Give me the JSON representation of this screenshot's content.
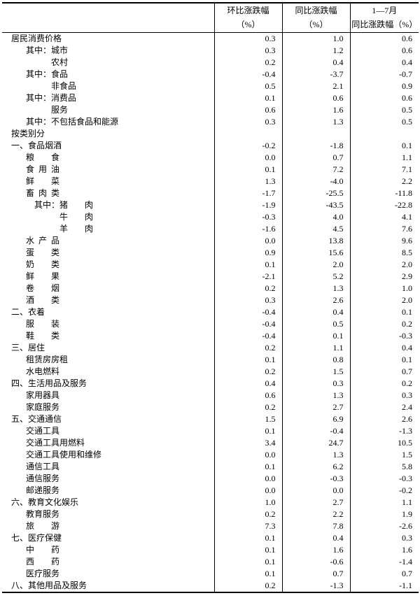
{
  "table": {
    "prefix_label": "其中：",
    "columns": [
      {
        "line1": "环比涨跌幅",
        "line2": "（%）"
      },
      {
        "line1": "同比涨跌幅",
        "line2": "（%）"
      },
      {
        "line1": "1—7月",
        "line2": "同比涨跌幅（%）"
      }
    ],
    "rows": [
      {
        "label": "居民消费价格",
        "indent": 0,
        "values": [
          "0.3",
          "1.0",
          "0.6"
        ]
      },
      {
        "label": "城市",
        "prefix": "show",
        "indent": 1,
        "values": [
          "0.3",
          "1.2",
          "0.6"
        ]
      },
      {
        "label": "农村",
        "prefix": "ghost",
        "indent": 1,
        "values": [
          "0.2",
          "0.4",
          "0.4"
        ]
      },
      {
        "label": "食品",
        "prefix": "show",
        "indent": 1,
        "values": [
          "-0.4",
          "-3.7",
          "-0.7"
        ]
      },
      {
        "label": "非食品",
        "prefix": "ghost",
        "indent": 1,
        "values": [
          "0.5",
          "2.1",
          "0.9"
        ]
      },
      {
        "label": "消费品",
        "prefix": "show",
        "indent": 1,
        "values": [
          "0.1",
          "0.6",
          "0.6"
        ]
      },
      {
        "label": "服务",
        "prefix": "ghost",
        "indent": 1,
        "values": [
          "0.6",
          "1.6",
          "0.5"
        ]
      },
      {
        "label": "不包括食品和能源",
        "prefix": "show",
        "indent": 1,
        "values": [
          "0.3",
          "1.3",
          "0.5"
        ]
      },
      {
        "label": "按类别分",
        "indent": 0,
        "values": [
          "",
          "",
          ""
        ]
      },
      {
        "label": "一、食品烟酒",
        "indent": 0,
        "values": [
          "-0.2",
          "-1.8",
          "0.1"
        ]
      },
      {
        "label": "粮食",
        "indent": 1,
        "spread": true,
        "values": [
          "0.0",
          "0.7",
          "1.1"
        ]
      },
      {
        "label": "食用油",
        "indent": 1,
        "spread": true,
        "values": [
          "0.1",
          "7.2",
          "7.1"
        ]
      },
      {
        "label": "鲜菜",
        "indent": 1,
        "spread": true,
        "values": [
          "1.3",
          "-4.0",
          "2.2"
        ]
      },
      {
        "label": "畜肉类",
        "indent": 1,
        "spread": true,
        "values": [
          "-1.7",
          "-25.5",
          "-11.8"
        ]
      },
      {
        "label": "猪肉",
        "prefix": "show",
        "indent": 2,
        "spread": true,
        "values": [
          "-1.9",
          "-43.5",
          "-22.8"
        ]
      },
      {
        "label": "牛肉",
        "prefix": "ghost",
        "indent": 2,
        "spread": true,
        "values": [
          "-0.3",
          "4.0",
          "4.1"
        ]
      },
      {
        "label": "羊肉",
        "prefix": "ghost",
        "indent": 2,
        "spread": true,
        "values": [
          "-1.6",
          "4.5",
          "7.6"
        ]
      },
      {
        "label": "水产品",
        "indent": 1,
        "spread": true,
        "values": [
          "0.0",
          "13.8",
          "9.6"
        ]
      },
      {
        "label": "蛋类",
        "indent": 1,
        "spread": true,
        "values": [
          "0.9",
          "15.6",
          "8.5"
        ]
      },
      {
        "label": "奶类",
        "indent": 1,
        "spread": true,
        "values": [
          "0.1",
          "2.0",
          "2.0"
        ]
      },
      {
        "label": "鲜果",
        "indent": 1,
        "spread": true,
        "values": [
          "-2.1",
          "5.2",
          "2.9"
        ]
      },
      {
        "label": "卷烟",
        "indent": 1,
        "spread": true,
        "values": [
          "0.2",
          "1.3",
          "1.0"
        ]
      },
      {
        "label": "酒类",
        "indent": 1,
        "spread": true,
        "values": [
          "0.3",
          "2.6",
          "2.0"
        ]
      },
      {
        "label": "二、衣着",
        "indent": 0,
        "values": [
          "-0.4",
          "0.4",
          "0.1"
        ]
      },
      {
        "label": "服装",
        "indent": 1,
        "spread": true,
        "values": [
          "-0.4",
          "0.5",
          "0.2"
        ]
      },
      {
        "label": "鞋类",
        "indent": 1,
        "spread": true,
        "values": [
          "-0.4",
          "0.1",
          "-0.3"
        ]
      },
      {
        "label": "三、居住",
        "indent": 0,
        "values": [
          "0.2",
          "1.1",
          "0.4"
        ]
      },
      {
        "label": "租赁房房租",
        "indent": 1,
        "values": [
          "0.1",
          "0.8",
          "0.1"
        ]
      },
      {
        "label": "水电燃料",
        "indent": 1,
        "values": [
          "0.2",
          "1.5",
          "0.7"
        ]
      },
      {
        "label": "四、生活用品及服务",
        "indent": 0,
        "values": [
          "0.4",
          "0.3",
          "0.2"
        ]
      },
      {
        "label": "家用器具",
        "indent": 1,
        "values": [
          "0.6",
          "1.3",
          "0.3"
        ]
      },
      {
        "label": "家庭服务",
        "indent": 1,
        "values": [
          "0.2",
          "2.7",
          "2.4"
        ]
      },
      {
        "label": "五、交通通信",
        "indent": 0,
        "values": [
          "1.5",
          "6.9",
          "2.6"
        ]
      },
      {
        "label": "交通工具",
        "indent": 1,
        "values": [
          "0.1",
          "-0.4",
          "-1.3"
        ]
      },
      {
        "label": "交通工具用燃料",
        "indent": 1,
        "values": [
          "3.4",
          "24.7",
          "10.5"
        ]
      },
      {
        "label": "交通工具使用和维修",
        "indent": 1,
        "values": [
          "0.0",
          "1.3",
          "1.5"
        ]
      },
      {
        "label": "通信工具",
        "indent": 1,
        "values": [
          "0.1",
          "6.2",
          "5.8"
        ]
      },
      {
        "label": "通信服务",
        "indent": 1,
        "values": [
          "0.0",
          "-0.3",
          "-0.3"
        ]
      },
      {
        "label": "邮递服务",
        "indent": 1,
        "values": [
          "0.0",
          "0.0",
          "-0.2"
        ]
      },
      {
        "label": "六、教育文化娱乐",
        "indent": 0,
        "values": [
          "1.0",
          "2.7",
          "1.1"
        ]
      },
      {
        "label": "教育服务",
        "indent": 1,
        "values": [
          "0.2",
          "2.2",
          "1.9"
        ]
      },
      {
        "label": "旅游",
        "indent": 1,
        "spread": true,
        "values": [
          "7.3",
          "7.8",
          "-2.6"
        ]
      },
      {
        "label": "七、医疗保健",
        "indent": 0,
        "values": [
          "0.1",
          "0.4",
          "0.3"
        ]
      },
      {
        "label": "中药",
        "indent": 1,
        "spread": true,
        "values": [
          "0.1",
          "1.6",
          "1.6"
        ]
      },
      {
        "label": "西药",
        "indent": 1,
        "spread": true,
        "values": [
          "0.1",
          "-0.6",
          "-1.4"
        ]
      },
      {
        "label": "医疗服务",
        "indent": 1,
        "values": [
          "0.1",
          "0.7",
          "0.7"
        ]
      },
      {
        "label": "八、其他用品及服务",
        "indent": 0,
        "values": [
          "0.2",
          "-1.3",
          "-1.1"
        ]
      }
    ]
  }
}
